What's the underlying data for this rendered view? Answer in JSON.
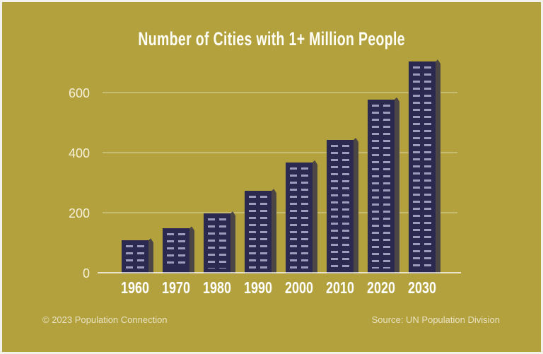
{
  "footer": {
    "left": "© 2023 Population Connection",
    "right": "Source: UN Population Division"
  },
  "chart_data": {
    "type": "bar",
    "title": "Number of Cities with 1+ Million People",
    "categories": [
      "1960",
      "1970",
      "1980",
      "1990",
      "2000",
      "2010",
      "2020",
      "2030"
    ],
    "values": [
      110,
      150,
      200,
      275,
      370,
      445,
      580,
      706
    ],
    "xlabel": "",
    "ylabel": "",
    "ylim": [
      0,
      730
    ],
    "yticks": [
      0,
      200,
      400,
      600
    ],
    "grid": true,
    "legend": false,
    "bar_style": "city-building-with-window-dashes",
    "source_note": "Source: UN Population Division",
    "copyright_note": "© 2023 Population Connection",
    "colors": {
      "background": "#b2a13c",
      "frame_border": "#f2f1ec",
      "bar_face": "#2c2950",
      "bar_side": "#4b4545",
      "bar_window": "#9f9bbd",
      "gridline": "rgba(255,255,255,0.28)",
      "baseline": "rgba(255,255,255,0.72)",
      "title_text": "#fffef7",
      "tick_text": "#f6f0da",
      "year_text": "#ffffff",
      "footer_text": "#e8e1c4"
    }
  }
}
